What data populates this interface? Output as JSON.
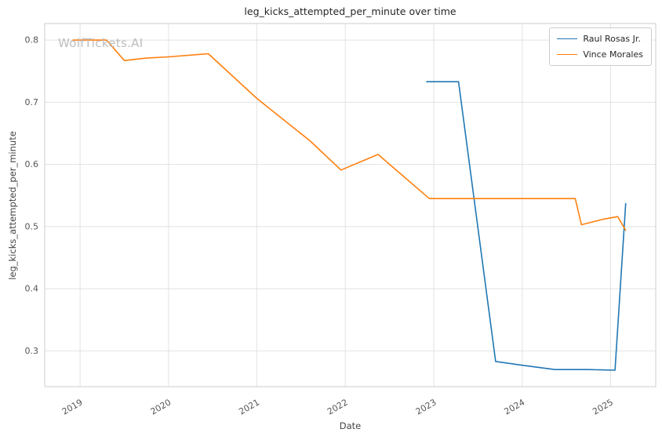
{
  "watermark": "WolfTickets.AI",
  "chart_data": {
    "type": "line",
    "title": "leg_kicks_attempted_per_minute over time",
    "xlabel": "Date",
    "ylabel": "leg_kicks_attempted_per_minute",
    "xlim": [
      2018.6,
      2025.51
    ],
    "ylim": [
      0.2425,
      0.8266
    ],
    "xticks": [
      2019,
      2020,
      2021,
      2022,
      2023,
      2024,
      2025
    ],
    "yticks": [
      0.3,
      0.4,
      0.5,
      0.6,
      0.7,
      0.8
    ],
    "grid": true,
    "legend_position": "upper right",
    "background": "#ffffff",
    "grid_color": "#e2e2e2",
    "spine_color": "#d4d4d4",
    "series": [
      {
        "name": "Raul Rosas Jr.",
        "color": "#1f77b4",
        "x": [
          2022.92,
          2023.28,
          2023.7,
          2024.0,
          2024.37,
          2024.75,
          2025.05,
          2025.17
        ],
        "y": [
          0.733,
          0.733,
          0.283,
          0.277,
          0.27,
          0.27,
          0.269,
          0.537
        ]
      },
      {
        "name": "Vince Morales",
        "color": "#ff7f0e",
        "x": [
          2018.92,
          2019.3,
          2019.5,
          2019.75,
          2020.0,
          2020.45,
          2021.0,
          2021.6,
          2021.95,
          2022.37,
          2022.95,
          2024.6,
          2024.67,
          2024.92,
          2025.08,
          2025.17
        ],
        "y": [
          0.8,
          0.8,
          0.767,
          0.771,
          0.773,
          0.778,
          0.706,
          0.638,
          0.591,
          0.616,
          0.545,
          0.545,
          0.503,
          0.512,
          0.516,
          0.494
        ]
      }
    ]
  }
}
